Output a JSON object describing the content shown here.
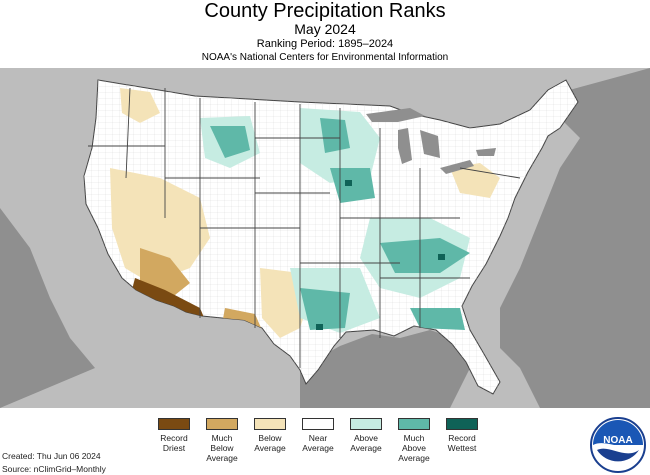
{
  "header": {
    "title": "County Precipitation Ranks",
    "subtitle": "May 2024",
    "ranking_period": "Ranking Period: 1895–2024",
    "organization": "NOAA's National Centers for Environmental Information"
  },
  "legend": {
    "items": [
      {
        "label": "Record\nDriest",
        "color": "#7a4a12"
      },
      {
        "label": "Much\nBelow\nAverage",
        "color": "#d2a860"
      },
      {
        "label": "Below\nAverage",
        "color": "#f4e3b8"
      },
      {
        "label": "Near\nAverage",
        "color": "#ffffff"
      },
      {
        "label": "Above\nAverage",
        "color": "#c6ece2"
      },
      {
        "label": "Much\nAbove\nAverage",
        "color": "#5fb8a8"
      },
      {
        "label": "Record\nWettest",
        "color": "#0f6257"
      }
    ]
  },
  "footer": {
    "created": "Created: Thu Jun 06 2024",
    "source": "Source: nClimGrid–Monthly"
  },
  "logo": {
    "text": "NOAA",
    "icon": "noaa-logo-icon"
  },
  "colors": {
    "land_outside": "#bdbdbd",
    "water": "#8f8f8f",
    "us_land": "#ffffff",
    "state_border": "#444444",
    "county_grid": "#cfcfcf"
  }
}
